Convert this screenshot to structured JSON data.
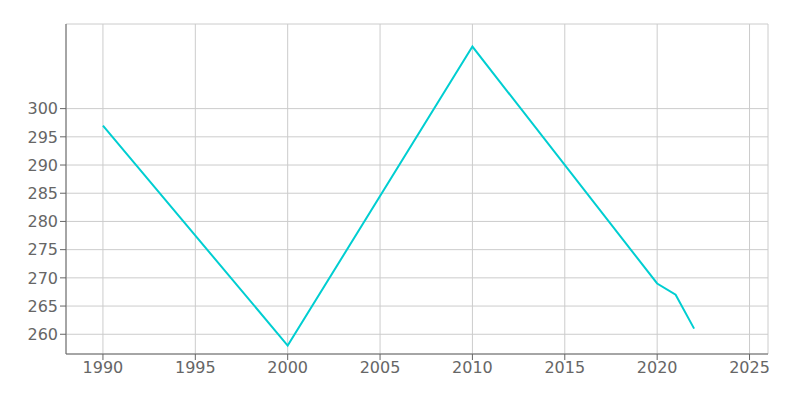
{
  "chart_data": {
    "type": "line",
    "x": [
      1990,
      2000,
      2010,
      2020,
      2021,
      2022
    ],
    "values": [
      297,
      258,
      311,
      269,
      267,
      261
    ],
    "color": "#00CED1",
    "xlim": [
      1988,
      2026
    ],
    "ylim": [
      256.5,
      315
    ],
    "xticks": [
      1990,
      1995,
      2000,
      2005,
      2010,
      2015,
      2020,
      2025
    ],
    "yticks": [
      260,
      265,
      270,
      275,
      280,
      285,
      290,
      295,
      300
    ],
    "grid": true
  }
}
